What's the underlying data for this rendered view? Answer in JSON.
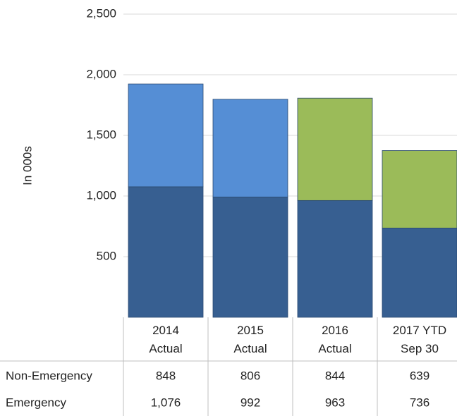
{
  "chart_data": {
    "type": "stacked_bar",
    "y_axis_label": "In 000s",
    "categories": [
      "2014\nActual",
      "2015\nActual",
      "2016\nActual",
      "2017 YTD\nSep 30"
    ],
    "series": [
      {
        "name": "Non-Emergency",
        "colors": [
          "#558ed5",
          "#558ed5",
          "#9bbb59",
          "#9bbb59"
        ],
        "values": [
          848,
          806,
          844,
          639
        ],
        "value_labels": [
          "848",
          "806",
          "844",
          "639"
        ]
      },
      {
        "name": "Emergency",
        "color": "#375f91",
        "values": [
          1076,
          992,
          963,
          736
        ],
        "value_labels": [
          "1,076",
          "992",
          "963",
          "736"
        ]
      }
    ],
    "ylim": [
      0,
      2500
    ],
    "yticks": [
      500,
      {
        "value": 1000,
        "label": "1,000"
      },
      {
        "value": 1500,
        "label": "1,500"
      },
      {
        "value": 2000,
        "label": "2,000"
      },
      {
        "value": 2500,
        "label": "2,500"
      }
    ],
    "grid": true
  }
}
